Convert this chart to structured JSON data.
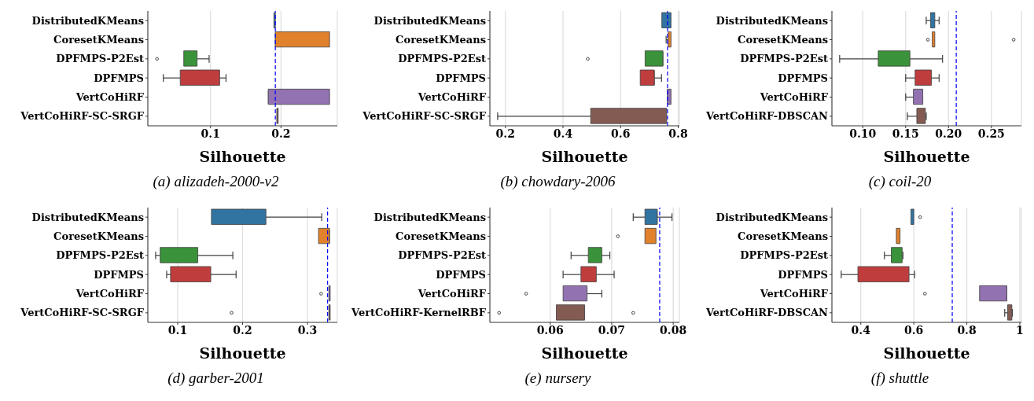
{
  "chart_data": [
    {
      "type": "box",
      "orientation": "horizontal",
      "xlabel": "Silhouette",
      "categories": [
        "DistributedKMeans",
        "CoresetKMeans",
        "DPFMPS-P2Est",
        "DPFMPS",
        "VertCoHiRF",
        "VertCoHiRF-SC-SRGF"
      ],
      "colors": [
        "#3274a1",
        "#e1812c",
        "#3a923a",
        "#c03d3e",
        "#9372b2",
        "#845b53"
      ],
      "xlim": [
        0.011,
        0.28
      ],
      "xticks": [
        0.1,
        0.2
      ],
      "grid": "x",
      "annotations": [
        "(a) alizadeh-2000-v2"
      ],
      "ref_lines": [
        {
          "axis": "x",
          "value": 0.192,
          "color": "#0000ff",
          "line_style": "dashed"
        }
      ],
      "boxes": [
        {
          "low": 0.19,
          "q1": 0.19,
          "median": 0.191,
          "q3": 0.192,
          "high": 0.192
        },
        {
          "low": 0.192,
          "q1": 0.192,
          "median": 0.192,
          "q3": 0.269,
          "high": 0.269
        },
        {
          "low": 0.062,
          "q1": 0.062,
          "median": 0.069,
          "q3": 0.081,
          "high": 0.098,
          "outliers": [
            0.024
          ]
        },
        {
          "low": 0.033,
          "q1": 0.057,
          "median": 0.096,
          "q3": 0.113,
          "high": 0.122
        },
        {
          "low": 0.182,
          "q1": 0.182,
          "median": 0.182,
          "q3": 0.269,
          "high": 0.269
        },
        {
          "low": 0.194,
          "q1": 0.194,
          "median": 0.195,
          "q3": 0.196,
          "high": 0.196
        }
      ]
    },
    {
      "type": "box",
      "orientation": "horizontal",
      "xlabel": "Silhouette",
      "categories": [
        "DistributedKMeans",
        "CoresetKMeans",
        "DPFMPS-P2Est",
        "DPFMPS",
        "VertCoHiRF",
        "VertCoHiRF-SC-SRGF"
      ],
      "colors": [
        "#3274a1",
        "#e1812c",
        "#3a923a",
        "#c03d3e",
        "#9372b2",
        "#845b53"
      ],
      "xlim": [
        0.146,
        0.804
      ],
      "xticks": [
        0.2,
        0.4,
        0.6,
        0.8
      ],
      "grid": "x",
      "annotations": [
        "(b) chowdary-2006"
      ],
      "ref_lines": [
        {
          "axis": "x",
          "value": 0.763,
          "color": "#0000ff",
          "line_style": "dashed"
        }
      ],
      "boxes": [
        {
          "low": 0.743,
          "q1": 0.743,
          "median": 0.76,
          "q3": 0.775,
          "high": 0.775
        },
        {
          "low": 0.758,
          "q1": 0.765,
          "median": 0.77,
          "q3": 0.775,
          "high": 0.775
        },
        {
          "low": 0.685,
          "q1": 0.685,
          "median": 0.747,
          "q3": 0.747,
          "high": 0.747,
          "outliers": [
            0.486
          ]
        },
        {
          "low": 0.668,
          "q1": 0.668,
          "median": 0.717,
          "q3": 0.717,
          "high": 0.742
        },
        {
          "low": 0.762,
          "q1": 0.762,
          "median": 0.768,
          "q3": 0.775,
          "high": 0.775
        },
        {
          "low": 0.173,
          "q1": 0.496,
          "median": 0.597,
          "q3": 0.76,
          "high": 0.76
        }
      ]
    },
    {
      "type": "box",
      "orientation": "horizontal",
      "xlabel": "Silhouette",
      "categories": [
        "DistributedKMeans",
        "CoresetKMeans",
        "DPFMPS-P2Est",
        "DPFMPS",
        "VertCoHiRF",
        "VertCoHiRF-DBSCAN"
      ],
      "colors": [
        "#3274a1",
        "#e1812c",
        "#3a923a",
        "#c03d3e",
        "#9372b2",
        "#845b53"
      ],
      "xlim": [
        0.064,
        0.285
      ],
      "xticks": [
        {
          "value": 0.1,
          "label": "0.10"
        },
        0.15,
        {
          "value": 0.2,
          "label": "0.20"
        },
        0.25
      ],
      "grid": "x",
      "annotations": [
        "(c) coil-20"
      ],
      "ref_lines": [
        {
          "axis": "x",
          "value": 0.209,
          "color": "#0000ff",
          "line_style": "dashed"
        }
      ],
      "boxes": [
        {
          "low": 0.174,
          "q1": 0.179,
          "median": 0.181,
          "q3": 0.184,
          "high": 0.189
        },
        {
          "low": 0.181,
          "q1": 0.181,
          "median": 0.182,
          "q3": 0.184,
          "high": 0.184,
          "outliers": [
            0.176,
            0.276
          ]
        },
        {
          "low": 0.073,
          "q1": 0.118,
          "median": 0.132,
          "q3": 0.155,
          "high": 0.193
        },
        {
          "low": 0.15,
          "q1": 0.161,
          "median": 0.165,
          "q3": 0.18,
          "high": 0.189
        },
        {
          "low": 0.15,
          "q1": 0.159,
          "median": 0.165,
          "q3": 0.17,
          "high": 0.17
        },
        {
          "low": 0.152,
          "q1": 0.163,
          "median": 0.166,
          "q3": 0.173,
          "high": 0.174
        }
      ]
    },
    {
      "type": "box",
      "orientation": "horizontal",
      "xlabel": "Silhouette",
      "categories": [
        "DistributedKMeans",
        "CoresetKMeans",
        "DPFMPS-P2Est",
        "DPFMPS",
        "VertCoHiRF",
        "VertCoHiRF-SC-SRGF"
      ],
      "colors": [
        "#3274a1",
        "#e1812c",
        "#3a923a",
        "#c03d3e",
        "#9372b2",
        "#845b53"
      ],
      "xlim": [
        0.054,
        0.346
      ],
      "xticks": [
        0.1,
        0.2,
        0.3
      ],
      "grid": "x",
      "annotations": [
        "(d) garber-2001"
      ],
      "ref_lines": [
        {
          "axis": "x",
          "value": 0.331,
          "color": "#0000ff",
          "line_style": "dashed"
        }
      ],
      "boxes": [
        {
          "low": 0.152,
          "q1": 0.152,
          "median": 0.159,
          "q3": 0.236,
          "high": 0.322
        },
        {
          "low": 0.317,
          "q1": 0.317,
          "median": 0.334,
          "q3": 0.334,
          "high": 0.334
        },
        {
          "low": 0.066,
          "q1": 0.073,
          "median": 0.11,
          "q3": 0.131,
          "high": 0.185
        },
        {
          "low": 0.083,
          "q1": 0.089,
          "median": 0.111,
          "q3": 0.151,
          "high": 0.19
        },
        {
          "low": 0.333,
          "q1": 0.333,
          "median": 0.334,
          "q3": 0.335,
          "high": 0.335,
          "outliers": [
            0.321
          ]
        },
        {
          "low": 0.333,
          "q1": 0.333,
          "median": 0.334,
          "q3": 0.335,
          "high": 0.335,
          "outliers": [
            0.183
          ]
        }
      ]
    },
    {
      "type": "box",
      "orientation": "horizontal",
      "xlabel": "Silhouette",
      "categories": [
        "DistributedKMeans",
        "CoresetKMeans",
        "DPFMPS-P2Est",
        "DPFMPS",
        "VertCoHiRF",
        "VertCoHiRF-KernelRBF"
      ],
      "colors": [
        "#3274a1",
        "#e1812c",
        "#3a923a",
        "#c03d3e",
        "#9372b2",
        "#845b53"
      ],
      "xlim": [
        0.0502,
        0.081
      ],
      "xticks": [
        0.06,
        0.07,
        0.08
      ],
      "grid": "x",
      "annotations": [
        "(e) nursery"
      ],
      "ref_lines": [
        {
          "axis": "x",
          "value": 0.0778,
          "color": "#0000ff",
          "line_style": "dashed"
        }
      ],
      "boxes": [
        {
          "low": 0.0735,
          "q1": 0.0754,
          "median": 0.0774,
          "q3": 0.0774,
          "high": 0.0798
        },
        {
          "low": 0.0754,
          "q1": 0.0754,
          "median": 0.0767,
          "q3": 0.0772,
          "high": 0.0772,
          "outliers": [
            0.071
          ]
        },
        {
          "low": 0.0634,
          "q1": 0.0662,
          "median": 0.0675,
          "q3": 0.0684,
          "high": 0.0697
        },
        {
          "low": 0.0621,
          "q1": 0.065,
          "median": 0.066,
          "q3": 0.0675,
          "high": 0.0704
        },
        {
          "low": 0.0621,
          "q1": 0.0621,
          "median": 0.0635,
          "q3": 0.066,
          "high": 0.0684,
          "outliers": [
            0.0561
          ]
        },
        {
          "low": 0.061,
          "q1": 0.061,
          "median": 0.063,
          "q3": 0.0656,
          "high": 0.0656,
          "outliers": [
            0.0517,
            0.0735
          ]
        }
      ]
    },
    {
      "type": "box",
      "orientation": "horizontal",
      "xlabel": "Silhouette",
      "categories": [
        "DistributedKMeans",
        "CoresetKMeans",
        "DPFMPS-P2Est",
        "DPFMPS",
        "VertCoHiRF",
        "VertCoHiRF-DBSCAN"
      ],
      "colors": [
        "#3274a1",
        "#e1812c",
        "#3a923a",
        "#c03d3e",
        "#9372b2",
        "#845b53"
      ],
      "xlim": [
        0.291,
        1.006
      ],
      "xticks": [
        0.4,
        0.6,
        0.8,
        1.0
      ],
      "grid": "x",
      "annotations": [
        "(f) shuttle"
      ],
      "ref_lines": [
        {
          "axis": "x",
          "value": 0.745,
          "color": "#0000ff",
          "line_style": "dashed"
        }
      ],
      "boxes": [
        {
          "low": 0.589,
          "q1": 0.589,
          "median": 0.596,
          "q3": 0.6,
          "high": 0.6,
          "outliers": [
            0.624
          ]
        },
        {
          "low": 0.534,
          "q1": 0.534,
          "median": 0.541,
          "q3": 0.548,
          "high": 0.548
        },
        {
          "low": 0.489,
          "q1": 0.515,
          "median": 0.527,
          "q3": 0.556,
          "high": 0.559
        },
        {
          "low": 0.326,
          "q1": 0.389,
          "median": 0.492,
          "q3": 0.582,
          "high": 0.603
        },
        {
          "low": 0.848,
          "q1": 0.848,
          "median": 0.951,
          "q3": 0.951,
          "high": 0.951,
          "outliers": [
            0.642
          ]
        },
        {
          "low": 0.943,
          "q1": 0.954,
          "median": 0.962,
          "q3": 0.97,
          "high": 0.972
        }
      ]
    }
  ]
}
